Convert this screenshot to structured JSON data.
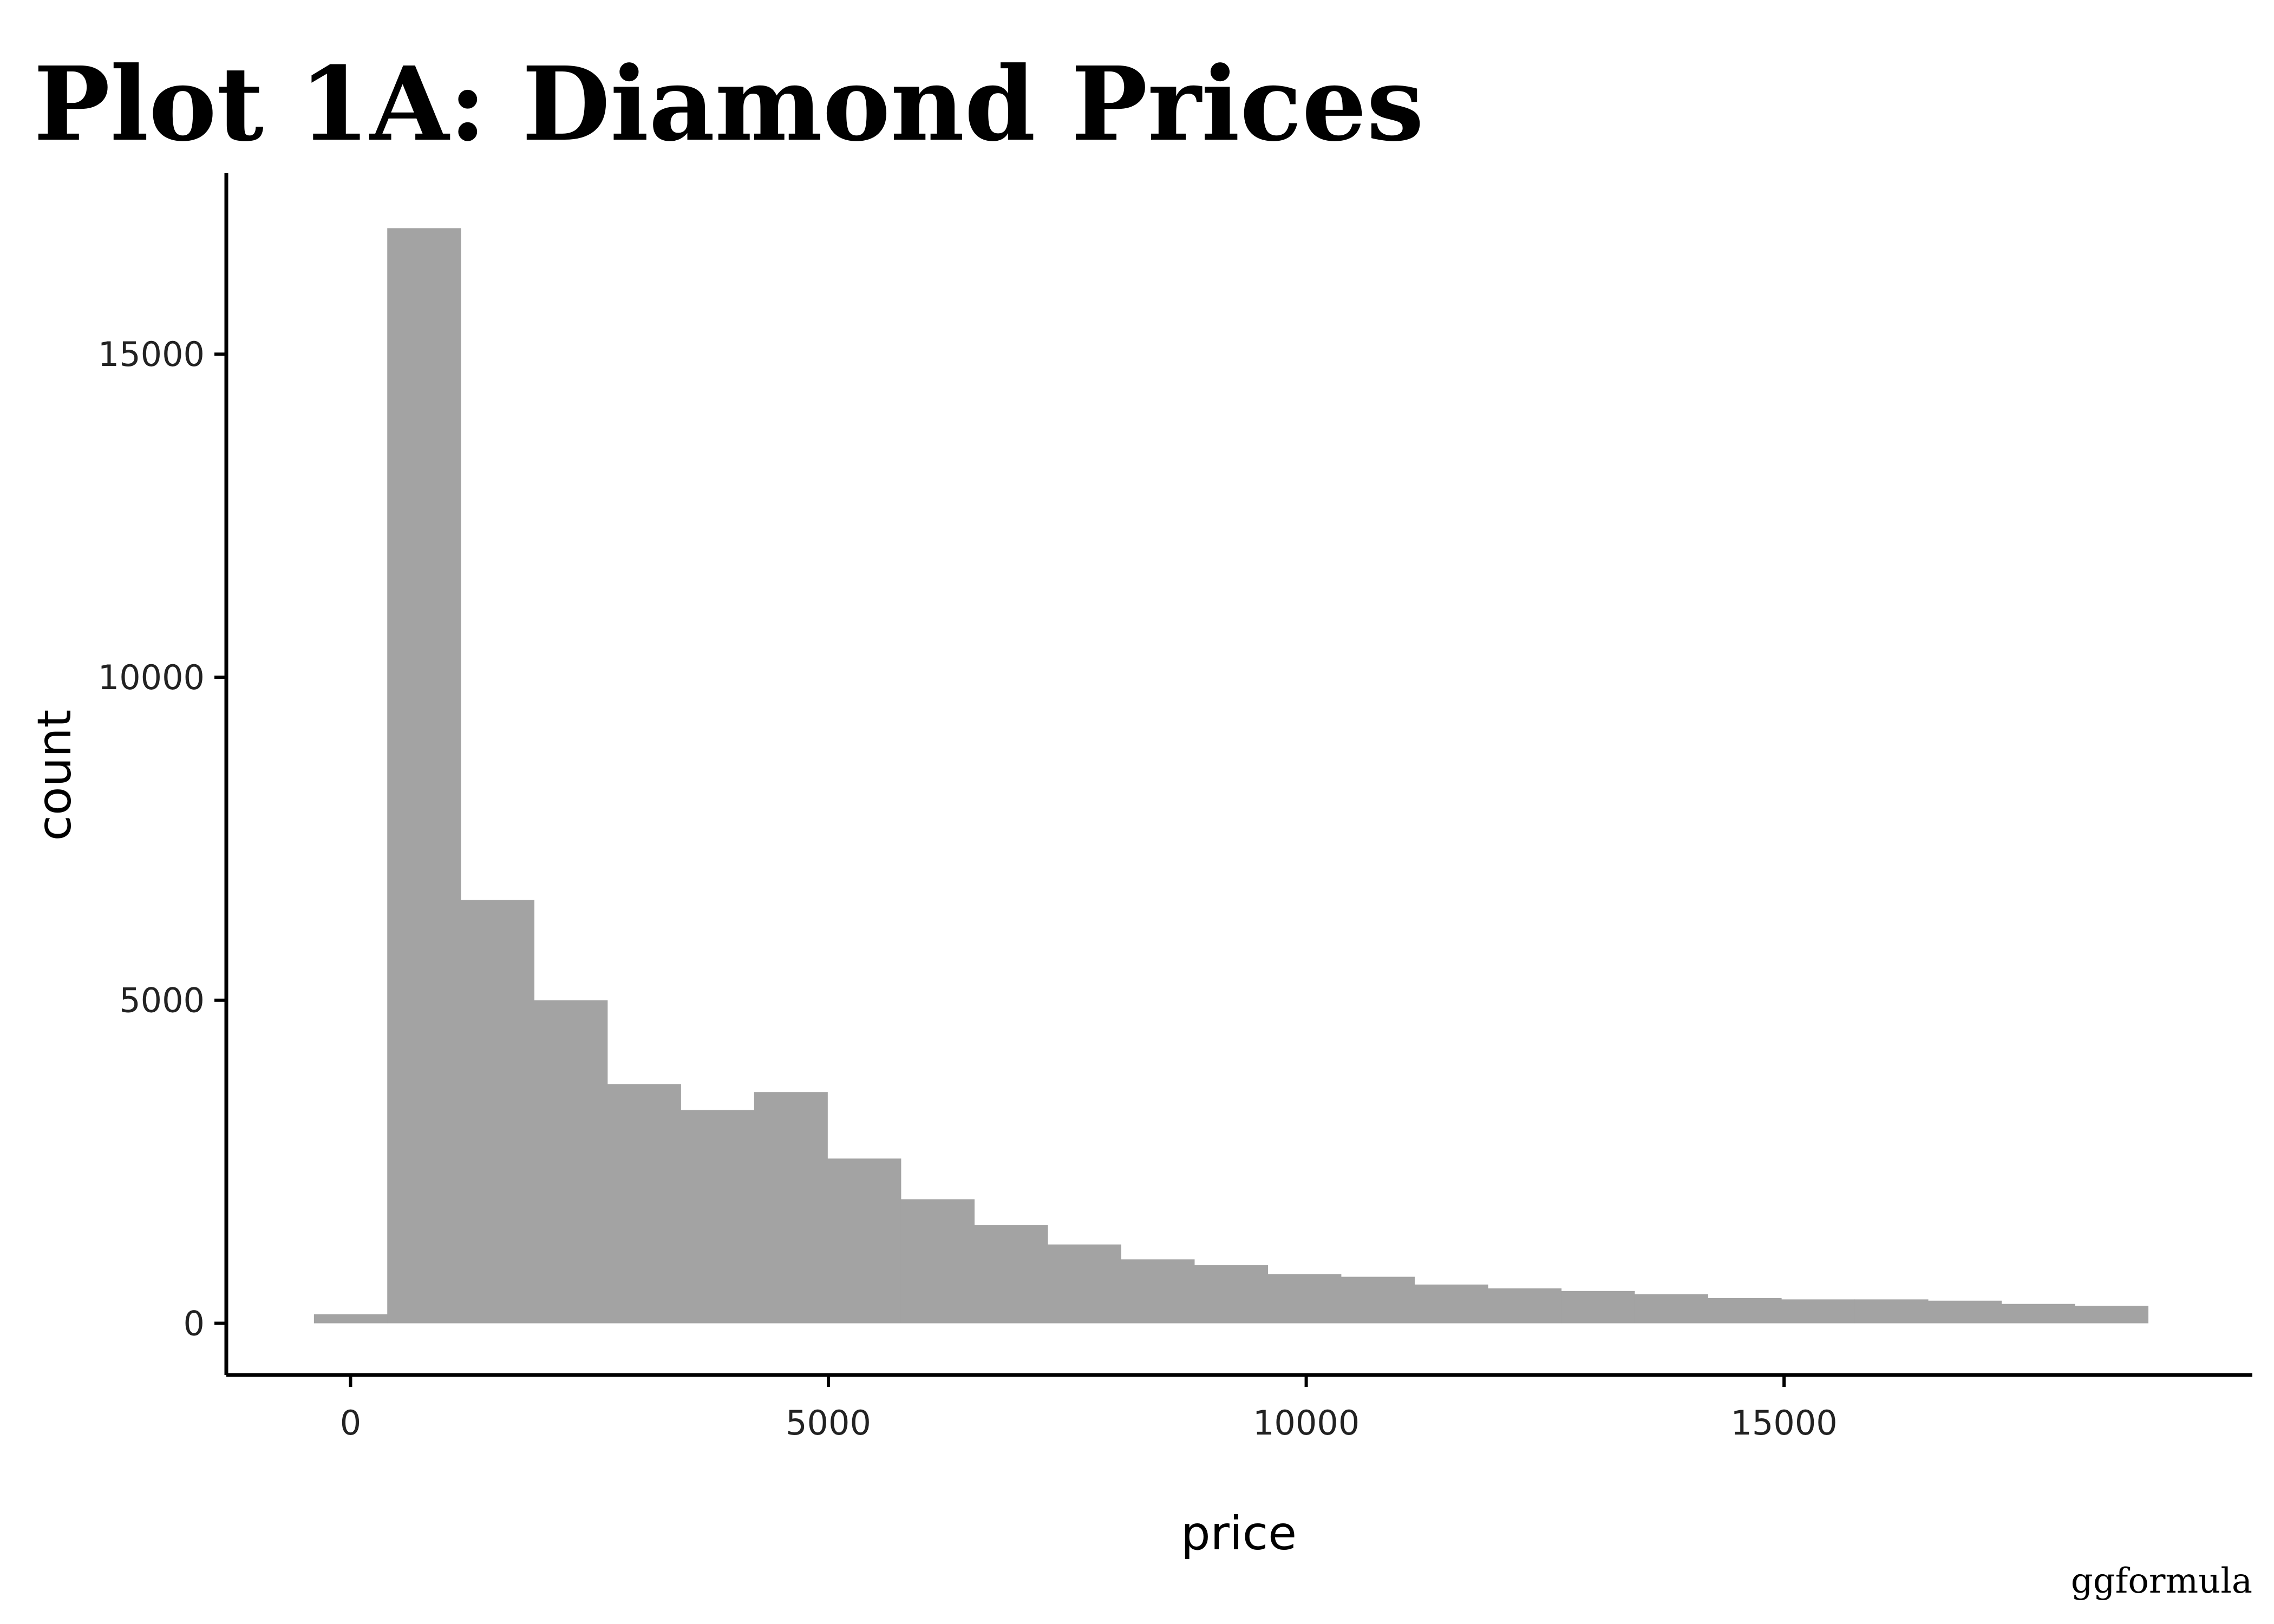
{
  "chart_data": {
    "type": "bar",
    "title": "Plot 1A: Diamond Prices",
    "xlabel": "price",
    "ylabel": "count",
    "caption": "ggformula",
    "bar_color": "#a3a3a3",
    "axis_color": "#000000",
    "grid": false,
    "legend": "none",
    "xlim": [
      -1300,
      19900
    ],
    "ylim": [
      -800,
      17800
    ],
    "x_ticks": [
      0,
      5000,
      10000,
      15000
    ],
    "y_ticks": [
      0,
      5000,
      10000,
      15000
    ],
    "x_tick_labels": [
      "0",
      "5000",
      "10000",
      "15000"
    ],
    "y_tick_labels": [
      "0",
      "5000",
      "10000",
      "15000"
    ],
    "bins": [
      {
        "x0": -383,
        "x1": 384,
        "count": 140
      },
      {
        "x0": 384,
        "x1": 1152,
        "count": 16950
      },
      {
        "x0": 1152,
        "x1": 1920,
        "count": 6550
      },
      {
        "x0": 1920,
        "x1": 2687,
        "count": 5000
      },
      {
        "x0": 2687,
        "x1": 3455,
        "count": 3700
      },
      {
        "x0": 3455,
        "x1": 4223,
        "count": 3300
      },
      {
        "x0": 4223,
        "x1": 4990,
        "count": 3580
      },
      {
        "x0": 4990,
        "x1": 5758,
        "count": 2550
      },
      {
        "x0": 5758,
        "x1": 6526,
        "count": 1920
      },
      {
        "x0": 6526,
        "x1": 7294,
        "count": 1520
      },
      {
        "x0": 7294,
        "x1": 8061,
        "count": 1220
      },
      {
        "x0": 8061,
        "x1": 8829,
        "count": 990
      },
      {
        "x0": 8829,
        "x1": 9597,
        "count": 900
      },
      {
        "x0": 9597,
        "x1": 10364,
        "count": 760
      },
      {
        "x0": 10364,
        "x1": 11132,
        "count": 720
      },
      {
        "x0": 11132,
        "x1": 11900,
        "count": 600
      },
      {
        "x0": 11900,
        "x1": 12668,
        "count": 540
      },
      {
        "x0": 12668,
        "x1": 13435,
        "count": 500
      },
      {
        "x0": 13435,
        "x1": 14203,
        "count": 450
      },
      {
        "x0": 14203,
        "x1": 14971,
        "count": 390
      },
      {
        "x0": 14971,
        "x1": 15738,
        "count": 370
      },
      {
        "x0": 15738,
        "x1": 16506,
        "count": 370
      },
      {
        "x0": 16506,
        "x1": 17274,
        "count": 350
      },
      {
        "x0": 17274,
        "x1": 18042,
        "count": 300
      },
      {
        "x0": 18042,
        "x1": 18809,
        "count": 270
      }
    ]
  }
}
